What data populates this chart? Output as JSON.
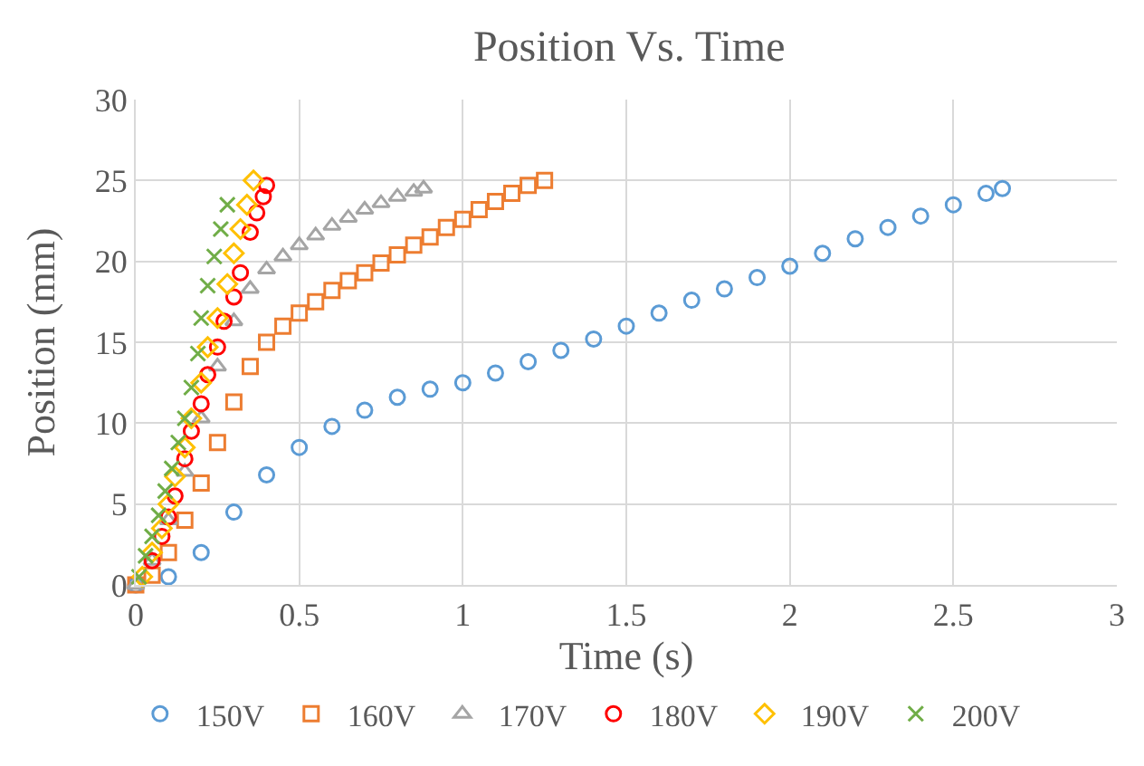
{
  "chart_data": {
    "type": "scatter",
    "title": "Position Vs. Time",
    "xlabel": "Time (s)",
    "ylabel": "Position (mm)",
    "xlim": [
      0,
      3
    ],
    "xticks": [
      0,
      0.5,
      1,
      1.5,
      2,
      2.5,
      3
    ],
    "ylim": [
      0,
      30
    ],
    "yticks": [
      0,
      5,
      10,
      15,
      20,
      25,
      30
    ],
    "grid": true,
    "legend": "bottom",
    "series": [
      {
        "name": "150V",
        "color": "#5b9bd5",
        "marker": "circle",
        "x": [
          0,
          0.1,
          0.2,
          0.3,
          0.4,
          0.5,
          0.6,
          0.7,
          0.8,
          0.9,
          1.0,
          1.1,
          1.2,
          1.3,
          1.4,
          1.5,
          1.6,
          1.7,
          1.8,
          1.9,
          2.0,
          2.1,
          2.2,
          2.3,
          2.4,
          2.5,
          2.6,
          2.65
        ],
        "values": [
          0,
          0.5,
          2,
          4.5,
          6.8,
          8.5,
          9.8,
          10.8,
          11.6,
          12.1,
          12.5,
          13.1,
          13.8,
          14.5,
          15.2,
          16.0,
          16.8,
          17.6,
          18.3,
          19.0,
          19.7,
          20.5,
          21.4,
          22.1,
          22.8,
          23.5,
          24.2,
          24.5
        ]
      },
      {
        "name": "160V",
        "color": "#ed7d31",
        "marker": "square",
        "x": [
          0,
          0.05,
          0.1,
          0.15,
          0.2,
          0.25,
          0.3,
          0.35,
          0.4,
          0.45,
          0.5,
          0.55,
          0.6,
          0.65,
          0.7,
          0.75,
          0.8,
          0.85,
          0.9,
          0.95,
          1.0,
          1.05,
          1.1,
          1.15,
          1.2,
          1.25
        ],
        "values": [
          0,
          0.6,
          2,
          4,
          6.3,
          8.8,
          11.3,
          13.5,
          15.0,
          16.0,
          16.8,
          17.5,
          18.2,
          18.8,
          19.3,
          19.9,
          20.4,
          21.0,
          21.5,
          22.1,
          22.6,
          23.2,
          23.7,
          24.2,
          24.7,
          25.0
        ]
      },
      {
        "name": "170V",
        "color": "#a5a5a5",
        "marker": "triangle",
        "x": [
          0,
          0.05,
          0.1,
          0.15,
          0.2,
          0.25,
          0.3,
          0.35,
          0.4,
          0.45,
          0.5,
          0.55,
          0.6,
          0.65,
          0.7,
          0.75,
          0.8,
          0.85,
          0.88
        ],
        "values": [
          0,
          1.5,
          4,
          7,
          10.3,
          13.5,
          16.3,
          18.3,
          19.5,
          20.3,
          21.0,
          21.6,
          22.2,
          22.7,
          23.2,
          23.6,
          24.0,
          24.3,
          24.5
        ]
      },
      {
        "name": "180V",
        "color": "#ff0000",
        "marker": "circle",
        "x": [
          0.05,
          0.08,
          0.1,
          0.12,
          0.15,
          0.17,
          0.2,
          0.22,
          0.25,
          0.27,
          0.3,
          0.32,
          0.35,
          0.37,
          0.39,
          0.4
        ],
        "values": [
          1.5,
          3,
          4.2,
          5.5,
          7.8,
          9.5,
          11.2,
          13,
          14.7,
          16.3,
          17.8,
          19.3,
          21.8,
          23.0,
          24,
          24.7
        ]
      },
      {
        "name": "190V",
        "color": "#ffc000",
        "marker": "diamond",
        "x": [
          0.02,
          0.05,
          0.08,
          0.1,
          0.12,
          0.15,
          0.17,
          0.2,
          0.22,
          0.25,
          0.28,
          0.3,
          0.32,
          0.34,
          0.36
        ],
        "values": [
          0.5,
          2,
          3.5,
          5,
          6.7,
          8.5,
          10.3,
          12.5,
          14.7,
          16.5,
          18.6,
          20.5,
          22,
          23.5,
          25
        ]
      },
      {
        "name": "200V",
        "color": "#70ad47",
        "marker": "cross",
        "x": [
          0.01,
          0.03,
          0.05,
          0.07,
          0.09,
          0.11,
          0.13,
          0.15,
          0.17,
          0.19,
          0.2,
          0.22,
          0.24,
          0.26,
          0.28
        ],
        "values": [
          0.5,
          1.8,
          3,
          4.3,
          5.8,
          7.2,
          8.8,
          10.3,
          12.2,
          14.3,
          16.5,
          18.5,
          20.3,
          22.0,
          23.5
        ]
      }
    ]
  }
}
